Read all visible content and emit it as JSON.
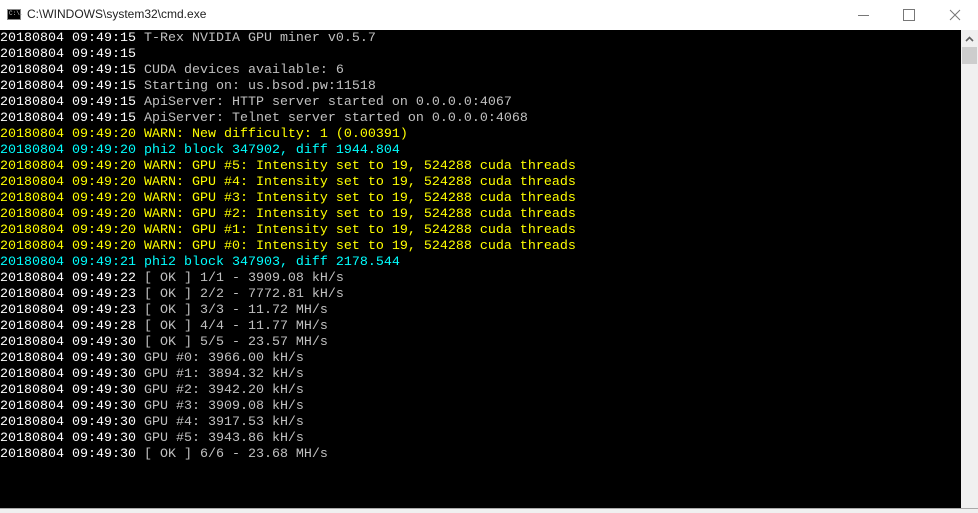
{
  "window": {
    "title": "C:\\WINDOWS\\system32\\cmd.exe",
    "icon": "cmd-icon",
    "icon_text": "C:\\."
  },
  "controls": {
    "minimize": "minimize-icon",
    "maximize": "maximize-icon",
    "close": "close-icon"
  },
  "colors": {
    "timestamp": "#ffffff",
    "text": "#c0c0c0",
    "warn": "#ffff00",
    "block": "#00ffff",
    "background": "#000000"
  },
  "console": {
    "lines": [
      {
        "ts": "20180804 09:49:15 ",
        "msg": "T-Rex NVIDIA GPU miner v0.5.7",
        "color": "default"
      },
      {
        "ts": "20180804 09:49:15 ",
        "msg": "",
        "color": "default"
      },
      {
        "ts": "20180804 09:49:15 ",
        "msg": "CUDA devices available: 6",
        "color": "default"
      },
      {
        "ts": "20180804 09:49:15 ",
        "msg": "Starting on: us.bsod.pw:11518",
        "color": "default"
      },
      {
        "ts": "20180804 09:49:15 ",
        "msg": "ApiServer: HTTP server started on 0.0.0.0:4067",
        "color": "default"
      },
      {
        "ts": "20180804 09:49:15 ",
        "msg": "ApiServer: Telnet server started on 0.0.0.0:4068",
        "color": "default"
      },
      {
        "ts": "20180804 09:49:20 ",
        "msg": "WARN: New difficulty: 1 (0.00391)",
        "color": "yellow"
      },
      {
        "ts": "20180804 09:49:20 ",
        "msg": "phi2 block 347902, diff 1944.804",
        "color": "cyan"
      },
      {
        "ts": "20180804 09:49:20 ",
        "msg": "WARN: GPU #5: Intensity set to 19, 524288 cuda threads",
        "color": "yellow"
      },
      {
        "ts": "20180804 09:49:20 ",
        "msg": "WARN: GPU #4: Intensity set to 19, 524288 cuda threads",
        "color": "yellow"
      },
      {
        "ts": "20180804 09:49:20 ",
        "msg": "WARN: GPU #3: Intensity set to 19, 524288 cuda threads",
        "color": "yellow"
      },
      {
        "ts": "20180804 09:49:20 ",
        "msg": "WARN: GPU #2: Intensity set to 19, 524288 cuda threads",
        "color": "yellow"
      },
      {
        "ts": "20180804 09:49:20 ",
        "msg": "WARN: GPU #1: Intensity set to 19, 524288 cuda threads",
        "color": "yellow"
      },
      {
        "ts": "20180804 09:49:20 ",
        "msg": "WARN: GPU #0: Intensity set to 19, 524288 cuda threads",
        "color": "yellow"
      },
      {
        "ts": "20180804 09:49:21 ",
        "msg": "phi2 block 347903, diff 2178.544",
        "color": "cyan"
      },
      {
        "ts": "20180804 09:49:22 ",
        "msg": "[ OK ] 1/1 - 3909.08 kH/s",
        "color": "default"
      },
      {
        "ts": "20180804 09:49:23 ",
        "msg": "[ OK ] 2/2 - 7772.81 kH/s",
        "color": "default"
      },
      {
        "ts": "20180804 09:49:23 ",
        "msg": "[ OK ] 3/3 - 11.72 MH/s",
        "color": "default"
      },
      {
        "ts": "20180804 09:49:28 ",
        "msg": "[ OK ] 4/4 - 11.77 MH/s",
        "color": "default"
      },
      {
        "ts": "20180804 09:49:30 ",
        "msg": "[ OK ] 5/5 - 23.57 MH/s",
        "color": "default"
      },
      {
        "ts": "20180804 09:49:30 ",
        "msg": "GPU #0: 3966.00 kH/s",
        "color": "default"
      },
      {
        "ts": "20180804 09:49:30 ",
        "msg": "GPU #1: 3894.32 kH/s",
        "color": "default"
      },
      {
        "ts": "20180804 09:49:30 ",
        "msg": "GPU #2: 3942.20 kH/s",
        "color": "default"
      },
      {
        "ts": "20180804 09:49:30 ",
        "msg": "GPU #3: 3909.08 kH/s",
        "color": "default"
      },
      {
        "ts": "20180804 09:49:30 ",
        "msg": "GPU #4: 3917.53 kH/s",
        "color": "default"
      },
      {
        "ts": "20180804 09:49:30 ",
        "msg": "GPU #5: 3943.86 kH/s",
        "color": "default"
      },
      {
        "ts": "20180804 09:49:30 ",
        "msg": "[ OK ] 6/6 - 23.68 MH/s",
        "color": "default"
      }
    ]
  }
}
